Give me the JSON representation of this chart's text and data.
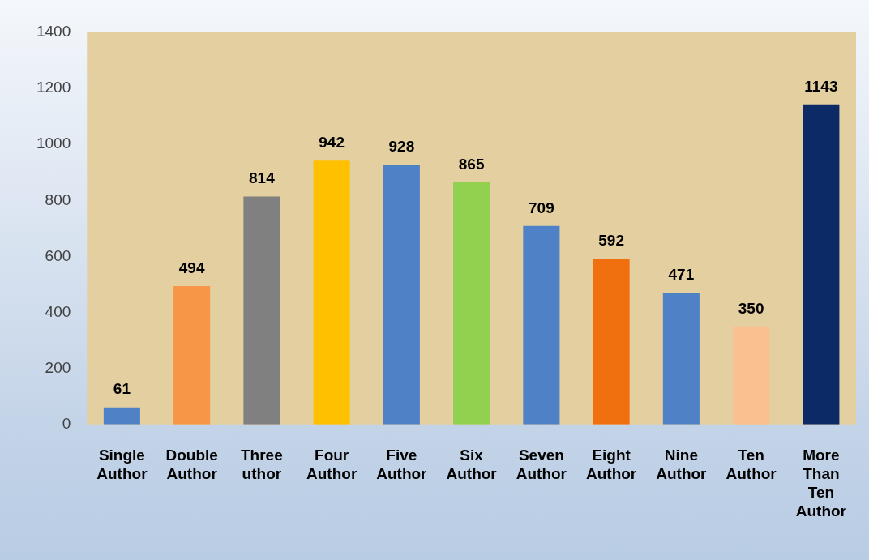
{
  "chart_data": {
    "type": "bar",
    "categories": [
      "Single Author",
      "Double Author",
      "Three uthor",
      "Four Author",
      "Five Author",
      "Six Author",
      "Seven Author",
      "Eight Author",
      "Nine Author",
      "Ten Author",
      "More Than Ten Author"
    ],
    "values": [
      61,
      494,
      814,
      942,
      928,
      865,
      709,
      592,
      471,
      350,
      1143
    ],
    "colors": [
      "#4f81c7",
      "#f79646",
      "#808080",
      "#ffc000",
      "#4f81c7",
      "#92d050",
      "#4f81c7",
      "#f07010",
      "#4f81c7",
      "#fac090",
      "#0c2a66"
    ],
    "ylim": [
      0,
      1400
    ],
    "yticks": [
      0,
      200,
      400,
      600,
      800,
      1000,
      1200,
      1400
    ],
    "data_labels": true,
    "grid": false,
    "legend": false
  }
}
